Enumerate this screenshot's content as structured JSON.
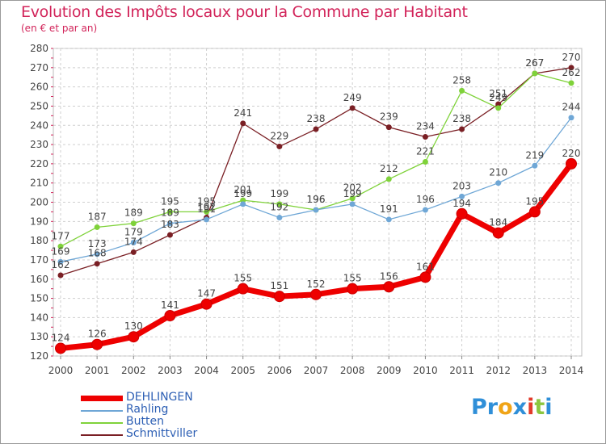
{
  "title": "Evolution des Impôts locaux pour la Commune par Habitant",
  "subtitle": "(en € et par an)",
  "logo": [
    "Pr",
    "o",
    "x",
    "i",
    "t",
    "i"
  ],
  "chart_data": {
    "type": "line",
    "title": "Evolution des Impôts locaux pour la Commune par Habitant",
    "ylabel": "(en € et par an)",
    "xlabel": "",
    "categories": [
      "2000",
      "2001",
      "2002",
      "2003",
      "2004",
      "2005",
      "2006",
      "2007",
      "2008",
      "2009",
      "2010",
      "2011",
      "2012",
      "2013",
      "2014"
    ],
    "yticks": [
      120,
      130,
      140,
      150,
      160,
      170,
      180,
      190,
      200,
      210,
      220,
      230,
      240,
      250,
      260,
      270,
      280
    ],
    "ylim": [
      120,
      280
    ],
    "grid": true,
    "legend_position": "bottom-left",
    "series": [
      {
        "name": "Schmittviller",
        "color": "#7a1f24",
        "values": [
          162,
          168,
          174,
          183,
          192,
          241,
          229,
          238,
          249,
          239,
          234,
          238,
          251,
          267,
          270
        ],
        "labels": [
          "162",
          "168",
          "174",
          "183",
          "192",
          "241",
          "229",
          "238",
          "249",
          "239",
          "234",
          "238",
          "251",
          "267",
          "270"
        ]
      },
      {
        "name": "Butten",
        "color": "#7fd23a",
        "values": [
          177,
          187,
          189,
          195,
          195,
          201,
          199,
          196,
          202,
          212,
          221,
          258,
          249,
          267,
          262
        ],
        "labels": [
          "177",
          "187",
          "189",
          "195",
          "195",
          "201",
          "199",
          "196",
          "202",
          "212",
          "221",
          "258",
          "249",
          "267",
          "262"
        ]
      },
      {
        "name": "Rahling",
        "color": "#6fa7d6",
        "values": [
          169,
          173,
          179,
          189,
          191,
          199,
          192,
          196,
          199,
          191,
          196,
          203,
          210,
          219,
          244
        ],
        "labels": [
          "169",
          "173",
          "179",
          "189",
          "191",
          "199",
          "192",
          "196",
          "199",
          "191",
          "196",
          "203",
          "210",
          "219",
          "244"
        ]
      },
      {
        "name": "DEHLINGEN",
        "color": "#ee0000",
        "values": [
          124,
          126,
          130,
          141,
          147,
          155,
          151,
          152,
          155,
          156,
          161,
          194,
          184,
          195,
          220
        ],
        "labels": [
          "124",
          "126",
          "130",
          "141",
          "147",
          "155",
          "151",
          "152",
          "155",
          "156",
          "161",
          "194",
          "184",
          "195",
          "220"
        ]
      }
    ],
    "legend_order": [
      "DEHLINGEN",
      "Rahling",
      "Butten",
      "Schmittviller"
    ]
  }
}
